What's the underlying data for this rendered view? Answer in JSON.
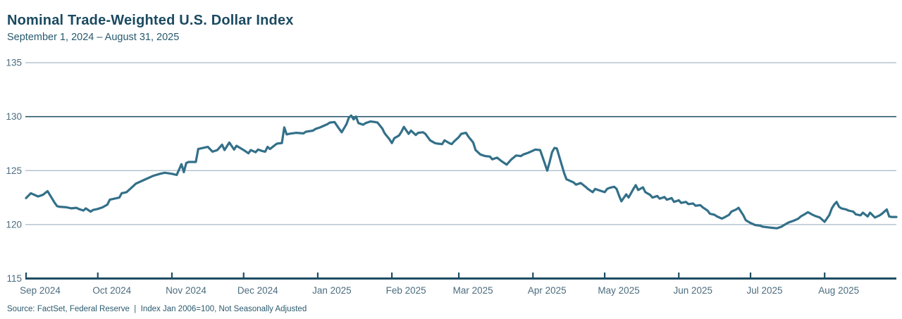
{
  "header": {
    "title": "Nominal Trade-Weighted U.S. Dollar Index",
    "subtitle": "September 1, 2024 – August 31, 2025"
  },
  "footer": {
    "source": "Source: FactSet, Federal Reserve  |  Index Jan 2006=100, Not Seasonally Adjusted"
  },
  "colors": {
    "title_navy": "#1b4a60",
    "axis_dark": "#1e4d63",
    "grid_light": "#a6b9c6",
    "tick_label": "#4b6c7e",
    "line_teal": "#337089"
  },
  "chart_data": {
    "type": "line",
    "title": "Nominal Trade-Weighted U.S. Dollar Index",
    "date_range": "September 1, 2024 – August 31, 2025",
    "xlabel": "",
    "ylabel": "",
    "grid": true,
    "legend": false,
    "ylim": [
      115,
      135
    ],
    "y_ticks": [
      135,
      130,
      125,
      120,
      115
    ],
    "emphasized_y_gridline": 130,
    "x_start": "2024-09-01",
    "x_end": "2025-08-31",
    "x_tick_dates": [
      "2024-09-01",
      "2024-10-01",
      "2024-11-01",
      "2024-12-01",
      "2025-01-01",
      "2025-02-01",
      "2025-03-01",
      "2025-04-01",
      "2025-05-01",
      "2025-06-01",
      "2025-07-01",
      "2025-08-01"
    ],
    "x_tick_labels": [
      "Sep 2024",
      "Oct 2024",
      "Nov 2024",
      "Dec 2024",
      "Jan 2025",
      "Feb 2025",
      "Mar 2025",
      "Apr 2025",
      "May 2025",
      "Jun 2025",
      "Jul 2025",
      "Aug 2025"
    ],
    "series": [
      {
        "name": "Nominal Trade-Weighted U.S. Dollar Index",
        "points": [
          [
            "2024-09-01",
            122.45
          ],
          [
            "2024-09-03",
            122.9
          ],
          [
            "2024-09-06",
            122.6
          ],
          [
            "2024-09-08",
            122.75
          ],
          [
            "2024-09-10",
            123.1
          ],
          [
            "2024-09-13",
            122.0
          ],
          [
            "2024-09-14",
            121.7
          ],
          [
            "2024-09-15",
            121.65
          ],
          [
            "2024-09-18",
            121.6
          ],
          [
            "2024-09-20",
            121.5
          ],
          [
            "2024-09-22",
            121.55
          ],
          [
            "2024-09-23",
            121.45
          ],
          [
            "2024-09-25",
            121.3
          ],
          [
            "2024-09-26",
            121.5
          ],
          [
            "2024-09-28",
            121.2
          ],
          [
            "2024-09-29",
            121.35
          ],
          [
            "2024-10-01",
            121.45
          ],
          [
            "2024-10-03",
            121.6
          ],
          [
            "2024-10-05",
            121.85
          ],
          [
            "2024-10-06",
            122.3
          ],
          [
            "2024-10-08",
            122.4
          ],
          [
            "2024-10-10",
            122.5
          ],
          [
            "2024-10-11",
            122.9
          ],
          [
            "2024-10-13",
            123.0
          ],
          [
            "2024-10-15",
            123.4
          ],
          [
            "2024-10-17",
            123.8
          ],
          [
            "2024-10-18",
            123.9
          ],
          [
            "2024-10-20",
            124.1
          ],
          [
            "2024-10-22",
            124.3
          ],
          [
            "2024-10-24",
            124.5
          ],
          [
            "2024-10-27",
            124.7
          ],
          [
            "2024-10-29",
            124.8
          ],
          [
            "2024-11-01",
            124.7
          ],
          [
            "2024-11-03",
            124.6
          ],
          [
            "2024-11-05",
            125.6
          ],
          [
            "2024-11-06",
            124.85
          ],
          [
            "2024-11-07",
            125.7
          ],
          [
            "2024-11-08",
            125.8
          ],
          [
            "2024-11-11",
            125.8
          ],
          [
            "2024-11-12",
            127.0
          ],
          [
            "2024-11-14",
            127.1
          ],
          [
            "2024-11-16",
            127.2
          ],
          [
            "2024-11-18",
            126.75
          ],
          [
            "2024-11-20",
            126.9
          ],
          [
            "2024-11-22",
            127.4
          ],
          [
            "2024-11-23",
            126.9
          ],
          [
            "2024-11-25",
            127.6
          ],
          [
            "2024-11-27",
            126.95
          ],
          [
            "2024-11-28",
            127.3
          ],
          [
            "2024-12-01",
            126.9
          ],
          [
            "2024-12-03",
            126.6
          ],
          [
            "2024-12-04",
            126.9
          ],
          [
            "2024-12-06",
            126.7
          ],
          [
            "2024-12-07",
            126.95
          ],
          [
            "2024-12-09",
            126.8
          ],
          [
            "2024-12-10",
            126.75
          ],
          [
            "2024-12-11",
            127.2
          ],
          [
            "2024-12-12",
            127.0
          ],
          [
            "2024-12-14",
            127.35
          ],
          [
            "2024-12-15",
            127.5
          ],
          [
            "2024-12-17",
            127.55
          ],
          [
            "2024-12-18",
            129.0
          ],
          [
            "2024-12-19",
            128.35
          ],
          [
            "2024-12-20",
            128.4
          ],
          [
            "2024-12-23",
            128.5
          ],
          [
            "2024-12-26",
            128.45
          ],
          [
            "2024-12-27",
            128.6
          ],
          [
            "2024-12-30",
            128.7
          ],
          [
            "2024-12-31",
            128.85
          ],
          [
            "2025-01-02",
            129.0
          ],
          [
            "2025-01-03",
            129.1
          ],
          [
            "2025-01-05",
            129.3
          ],
          [
            "2025-01-06",
            129.45
          ],
          [
            "2025-01-08",
            129.5
          ],
          [
            "2025-01-10",
            128.85
          ],
          [
            "2025-01-11",
            128.55
          ],
          [
            "2025-01-13",
            129.3
          ],
          [
            "2025-01-14",
            129.9
          ],
          [
            "2025-01-15",
            130.1
          ],
          [
            "2025-01-16",
            129.75
          ],
          [
            "2025-01-17",
            130.0
          ],
          [
            "2025-01-18",
            129.4
          ],
          [
            "2025-01-20",
            129.25
          ],
          [
            "2025-01-21",
            129.4
          ],
          [
            "2025-01-23",
            129.55
          ],
          [
            "2025-01-25",
            129.5
          ],
          [
            "2025-01-26",
            129.45
          ],
          [
            "2025-01-28",
            128.9
          ],
          [
            "2025-01-29",
            128.45
          ],
          [
            "2025-01-31",
            127.9
          ],
          [
            "2025-02-01",
            127.55
          ],
          [
            "2025-02-02",
            128.0
          ],
          [
            "2025-02-04",
            128.25
          ],
          [
            "2025-02-05",
            128.6
          ],
          [
            "2025-02-06",
            129.05
          ],
          [
            "2025-02-08",
            128.4
          ],
          [
            "2025-02-09",
            128.7
          ],
          [
            "2025-02-11",
            128.3
          ],
          [
            "2025-02-12",
            128.5
          ],
          [
            "2025-02-14",
            128.55
          ],
          [
            "2025-02-15",
            128.4
          ],
          [
            "2025-02-17",
            127.8
          ],
          [
            "2025-02-19",
            127.55
          ],
          [
            "2025-02-20",
            127.5
          ],
          [
            "2025-02-22",
            127.45
          ],
          [
            "2025-02-23",
            127.8
          ],
          [
            "2025-02-25",
            127.55
          ],
          [
            "2025-02-26",
            127.45
          ],
          [
            "2025-02-27",
            127.7
          ],
          [
            "2025-03-01",
            128.1
          ],
          [
            "2025-03-02",
            128.4
          ],
          [
            "2025-03-04",
            128.5
          ],
          [
            "2025-03-05",
            128.15
          ],
          [
            "2025-03-07",
            127.6
          ],
          [
            "2025-03-08",
            126.9
          ],
          [
            "2025-03-10",
            126.5
          ],
          [
            "2025-03-12",
            126.35
          ],
          [
            "2025-03-14",
            126.3
          ],
          [
            "2025-03-15",
            126.05
          ],
          [
            "2025-03-17",
            126.2
          ],
          [
            "2025-03-19",
            125.85
          ],
          [
            "2025-03-20",
            125.7
          ],
          [
            "2025-03-21",
            125.55
          ],
          [
            "2025-03-23",
            126.05
          ],
          [
            "2025-03-25",
            126.4
          ],
          [
            "2025-03-27",
            126.35
          ],
          [
            "2025-03-28",
            126.5
          ],
          [
            "2025-03-30",
            126.65
          ],
          [
            "2025-04-01",
            126.85
          ],
          [
            "2025-04-02",
            126.95
          ],
          [
            "2025-04-04",
            126.9
          ],
          [
            "2025-04-07",
            125.0
          ],
          [
            "2025-04-08",
            125.8
          ],
          [
            "2025-04-09",
            126.7
          ],
          [
            "2025-04-10",
            127.1
          ],
          [
            "2025-04-11",
            127.05
          ],
          [
            "2025-04-12",
            126.3
          ],
          [
            "2025-04-14",
            124.8
          ],
          [
            "2025-04-15",
            124.2
          ],
          [
            "2025-04-17",
            124.0
          ],
          [
            "2025-04-18",
            123.9
          ],
          [
            "2025-04-19",
            123.7
          ],
          [
            "2025-04-21",
            123.85
          ],
          [
            "2025-04-23",
            123.5
          ],
          [
            "2025-04-24",
            123.3
          ],
          [
            "2025-04-26",
            123.0
          ],
          [
            "2025-04-27",
            123.3
          ],
          [
            "2025-04-29",
            123.15
          ],
          [
            "2025-05-01",
            123.0
          ],
          [
            "2025-05-02",
            123.3
          ],
          [
            "2025-05-03",
            123.4
          ],
          [
            "2025-05-05",
            123.5
          ],
          [
            "2025-05-06",
            123.3
          ],
          [
            "2025-05-07",
            122.7
          ],
          [
            "2025-05-08",
            122.15
          ],
          [
            "2025-05-10",
            122.8
          ],
          [
            "2025-05-11",
            122.5
          ],
          [
            "2025-05-13",
            123.3
          ],
          [
            "2025-05-14",
            123.65
          ],
          [
            "2025-05-15",
            123.2
          ],
          [
            "2025-05-17",
            123.45
          ],
          [
            "2025-05-18",
            123.0
          ],
          [
            "2025-05-20",
            122.75
          ],
          [
            "2025-05-21",
            122.5
          ],
          [
            "2025-05-23",
            122.65
          ],
          [
            "2025-05-24",
            122.4
          ],
          [
            "2025-05-26",
            122.55
          ],
          [
            "2025-05-27",
            122.3
          ],
          [
            "2025-05-29",
            122.45
          ],
          [
            "2025-05-30",
            122.1
          ],
          [
            "2025-06-01",
            122.25
          ],
          [
            "2025-06-02",
            122.0
          ],
          [
            "2025-06-04",
            122.1
          ],
          [
            "2025-06-05",
            121.9
          ],
          [
            "2025-06-07",
            121.95
          ],
          [
            "2025-06-08",
            121.75
          ],
          [
            "2025-06-10",
            121.8
          ],
          [
            "2025-06-11",
            121.6
          ],
          [
            "2025-06-13",
            121.3
          ],
          [
            "2025-06-14",
            121.0
          ],
          [
            "2025-06-16",
            120.9
          ],
          [
            "2025-06-17",
            120.75
          ],
          [
            "2025-06-19",
            120.55
          ],
          [
            "2025-06-20",
            120.65
          ],
          [
            "2025-06-22",
            120.9
          ],
          [
            "2025-06-23",
            121.2
          ],
          [
            "2025-06-25",
            121.4
          ],
          [
            "2025-06-26",
            121.55
          ],
          [
            "2025-06-28",
            120.85
          ],
          [
            "2025-06-29",
            120.4
          ],
          [
            "2025-07-01",
            120.15
          ],
          [
            "2025-07-03",
            119.95
          ],
          [
            "2025-07-05",
            119.9
          ],
          [
            "2025-07-06",
            119.8
          ],
          [
            "2025-07-08",
            119.75
          ],
          [
            "2025-07-10",
            119.7
          ],
          [
            "2025-07-12",
            119.65
          ],
          [
            "2025-07-14",
            119.8
          ],
          [
            "2025-07-15",
            119.95
          ],
          [
            "2025-07-17",
            120.2
          ],
          [
            "2025-07-19",
            120.35
          ],
          [
            "2025-07-21",
            120.55
          ],
          [
            "2025-07-22",
            120.75
          ],
          [
            "2025-07-24",
            121.0
          ],
          [
            "2025-07-25",
            121.15
          ],
          [
            "2025-07-27",
            120.9
          ],
          [
            "2025-07-28",
            120.8
          ],
          [
            "2025-07-30",
            120.65
          ],
          [
            "2025-07-31",
            120.45
          ],
          [
            "2025-08-01",
            120.25
          ],
          [
            "2025-08-03",
            120.9
          ],
          [
            "2025-08-04",
            121.5
          ],
          [
            "2025-08-05",
            121.85
          ],
          [
            "2025-08-06",
            122.1
          ],
          [
            "2025-08-07",
            121.65
          ],
          [
            "2025-08-08",
            121.5
          ],
          [
            "2025-08-10",
            121.4
          ],
          [
            "2025-08-11",
            121.3
          ],
          [
            "2025-08-13",
            121.2
          ],
          [
            "2025-08-14",
            120.95
          ],
          [
            "2025-08-16",
            120.85
          ],
          [
            "2025-08-17",
            121.1
          ],
          [
            "2025-08-19",
            120.75
          ],
          [
            "2025-08-20",
            121.1
          ],
          [
            "2025-08-22",
            120.65
          ],
          [
            "2025-08-24",
            120.85
          ],
          [
            "2025-08-25",
            121.0
          ],
          [
            "2025-08-26",
            121.2
          ],
          [
            "2025-08-27",
            121.4
          ],
          [
            "2025-08-28",
            120.75
          ],
          [
            "2025-08-29",
            120.7
          ],
          [
            "2025-08-31",
            120.7
          ]
        ]
      }
    ]
  }
}
